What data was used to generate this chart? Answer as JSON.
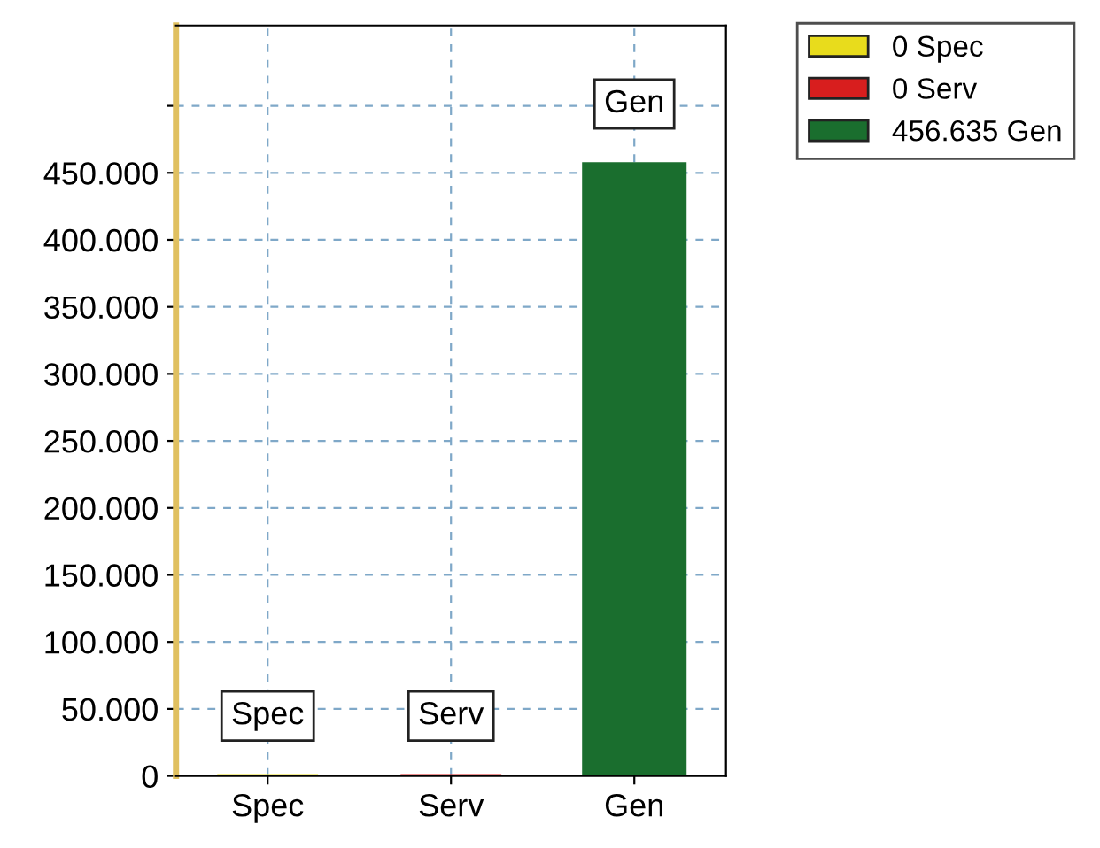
{
  "chart_data": {
    "type": "bar",
    "categories": [
      "Spec",
      "Serv",
      "Gen"
    ],
    "series": [
      {
        "name": "0 Spec",
        "color": "#e8dc1c",
        "values": [
          0,
          null,
          null
        ]
      },
      {
        "name": "0 Serv",
        "color": "#d81e1e",
        "values": [
          null,
          0,
          null
        ]
      },
      {
        "name": "456.635 Gen",
        "color": "#1a6e2e",
        "values": [
          null,
          null,
          456635
        ]
      }
    ],
    "annotations": [
      "Spec",
      "Serv",
      "Gen"
    ],
    "ylim": [
      0,
      560000
    ],
    "yticks": [
      0,
      {
        "value": 50000,
        "label": "50.000"
      },
      {
        "value": 100000,
        "label": "100.000"
      },
      {
        "value": 150000,
        "label": "150.000"
      },
      {
        "value": 200000,
        "label": "200.000"
      },
      {
        "value": 250000,
        "label": "250.000"
      },
      {
        "value": 300000,
        "label": "300.000"
      },
      {
        "value": 350000,
        "label": "350.000"
      },
      {
        "value": 400000,
        "label": "400.000"
      },
      {
        "value": 450000,
        "label": "450.000"
      },
      {
        "value": 500000,
        "label": null
      }
    ],
    "grid": true,
    "legend": "top right"
  }
}
